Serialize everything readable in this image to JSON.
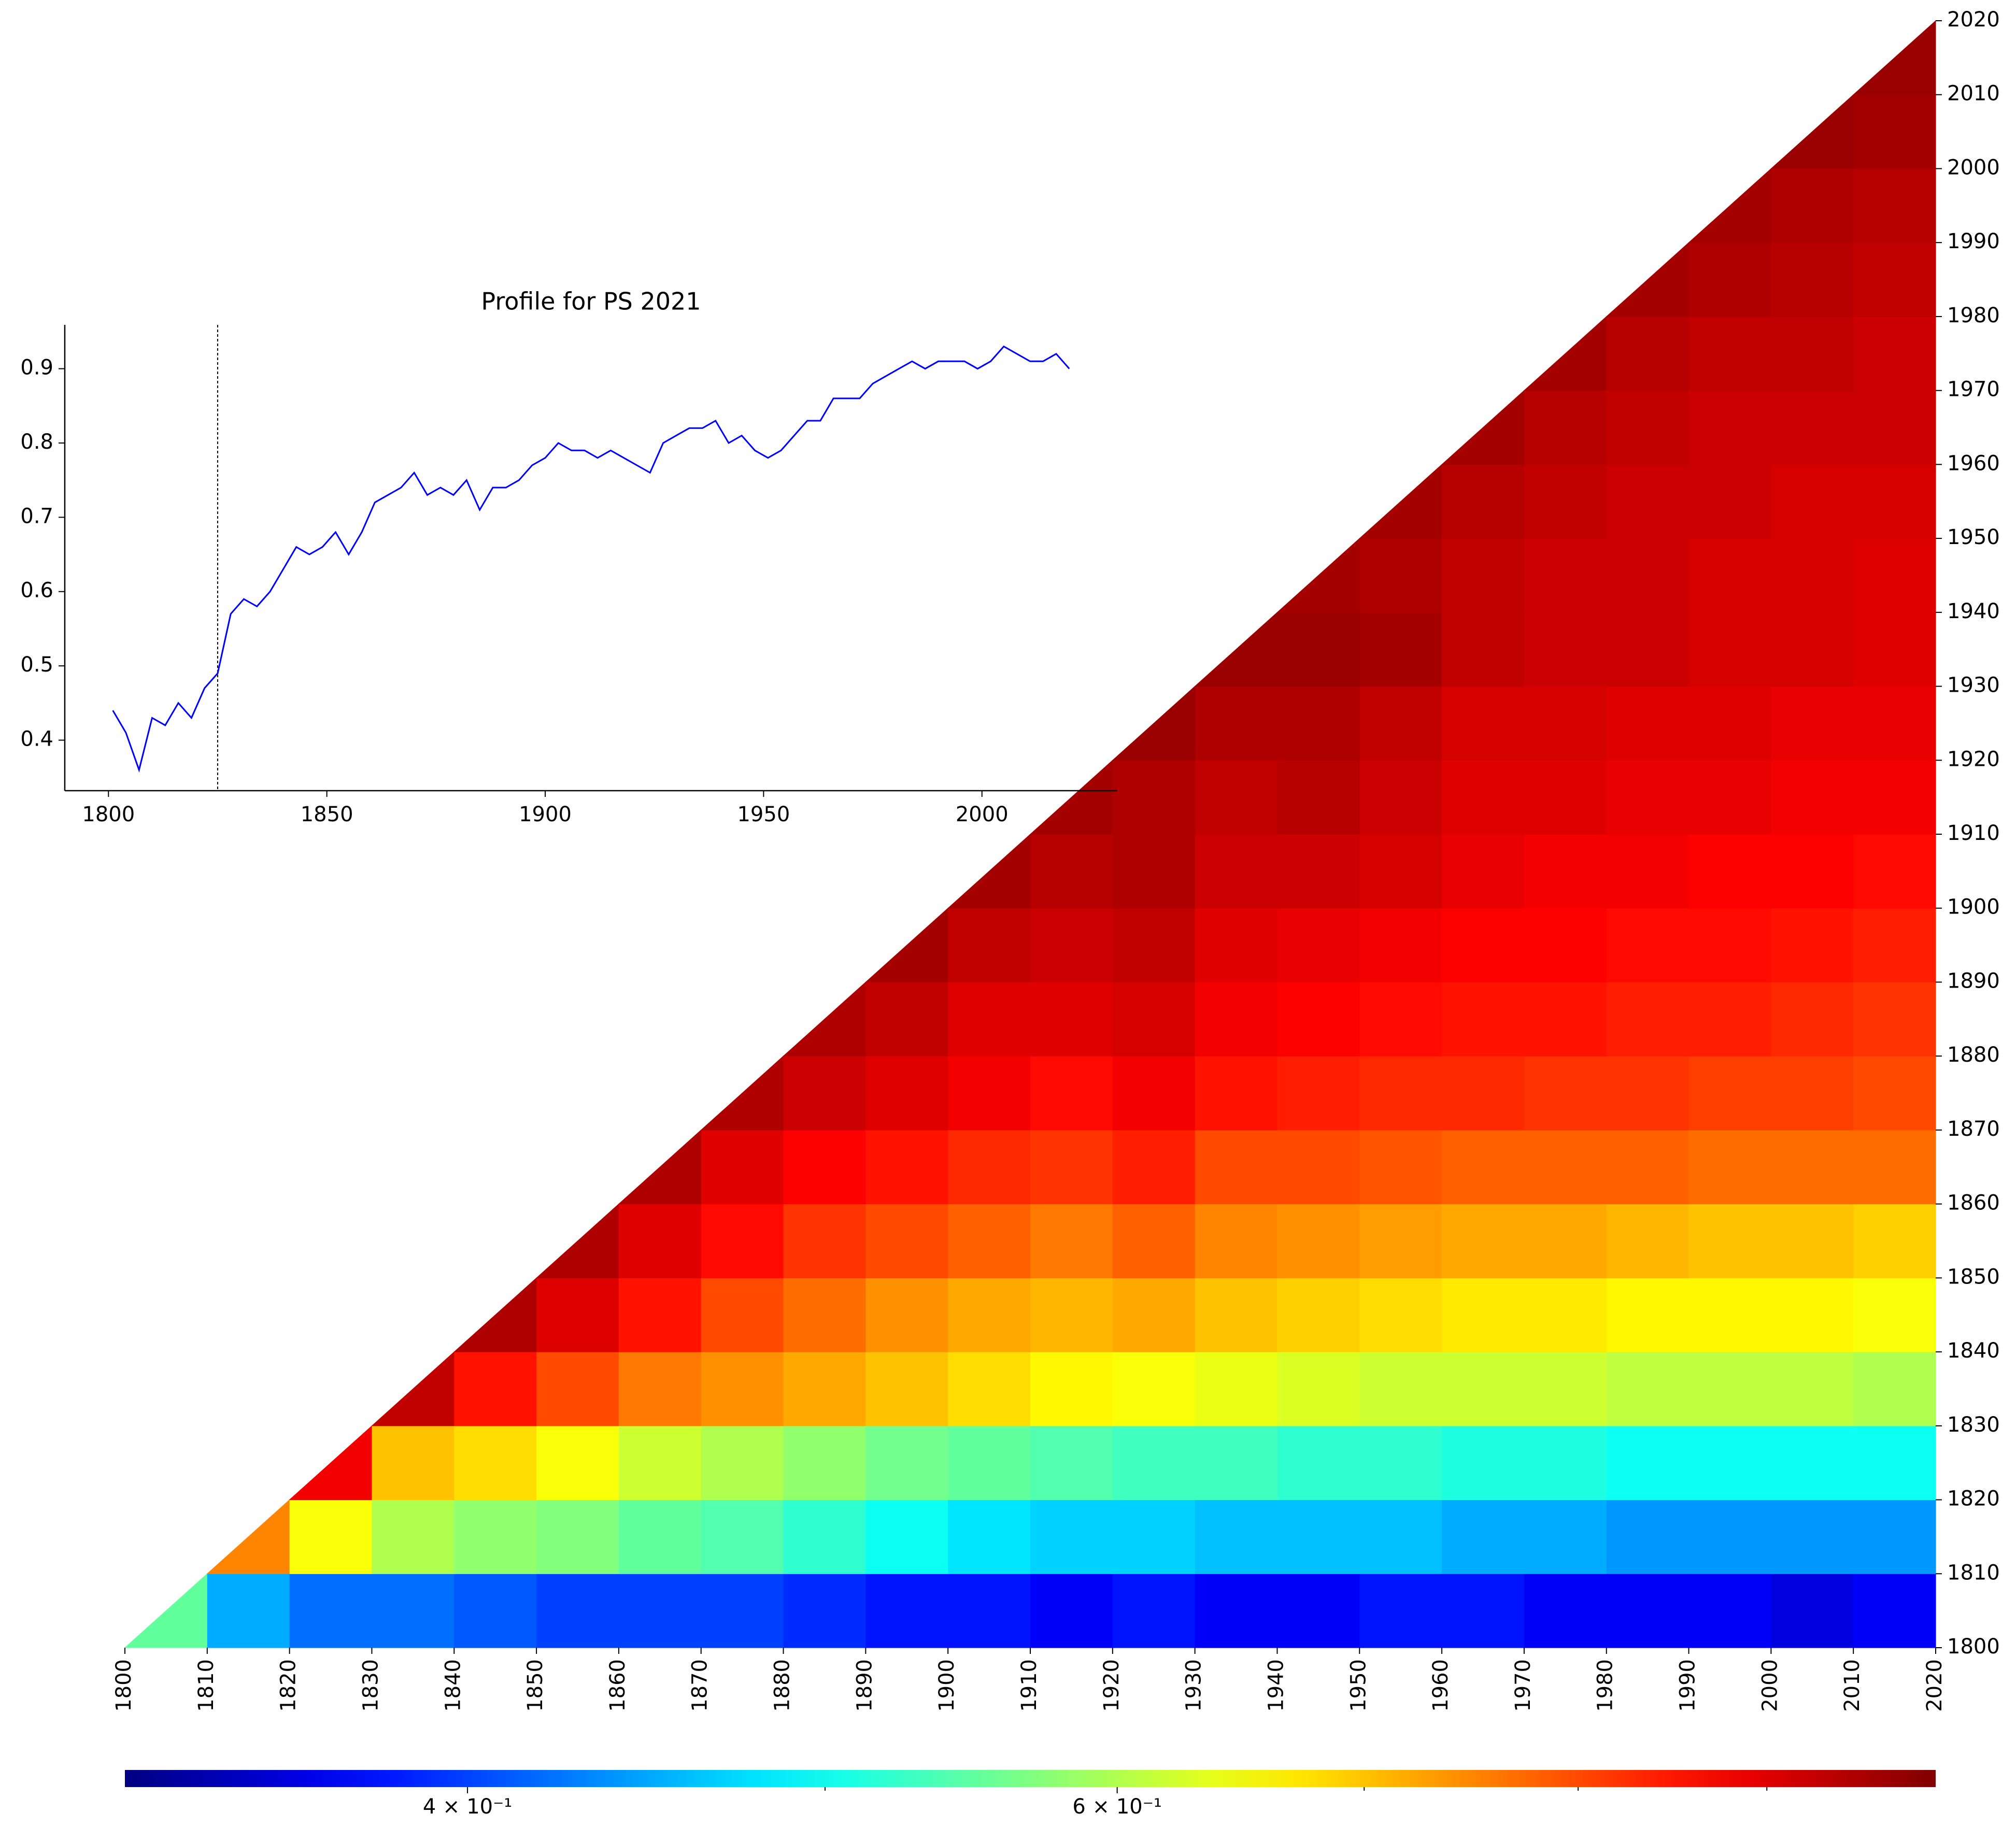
{
  "chart_data": [
    {
      "type": "heatmap",
      "bins": [
        1800,
        1810,
        1820,
        1830,
        1840,
        1850,
        1860,
        1870,
        1880,
        1890,
        1900,
        1910,
        1920,
        1930,
        1940,
        1950,
        1960,
        1970,
        1980,
        1990,
        2000,
        2010,
        2020
      ],
      "matrix": [
        [
          0.55,
          0.45,
          0.42,
          0.42,
          0.41,
          0.4,
          0.4,
          0.4,
          0.39,
          0.38,
          0.38,
          0.37,
          0.38,
          0.37,
          0.37,
          0.38,
          0.38,
          0.37,
          0.37,
          0.37,
          0.36,
          0.37
        ],
        [
          null,
          0.75,
          0.65,
          0.6,
          0.58,
          0.57,
          0.55,
          0.54,
          0.52,
          0.5,
          0.48,
          0.47,
          0.47,
          0.46,
          0.46,
          0.46,
          0.45,
          0.45,
          0.44,
          0.44,
          0.44,
          0.44
        ],
        [
          null,
          null,
          0.88,
          0.7,
          0.68,
          0.65,
          0.62,
          0.6,
          0.58,
          0.56,
          0.55,
          0.54,
          0.53,
          0.53,
          0.52,
          0.52,
          0.51,
          0.51,
          0.5,
          0.5,
          0.5,
          0.5
        ],
        [
          null,
          null,
          null,
          0.93,
          0.85,
          0.8,
          0.76,
          0.74,
          0.72,
          0.7,
          0.68,
          0.66,
          0.65,
          0.64,
          0.63,
          0.62,
          0.62,
          0.62,
          0.61,
          0.61,
          0.61,
          0.6
        ],
        [
          null,
          null,
          null,
          null,
          0.95,
          0.9,
          0.85,
          0.8,
          0.77,
          0.74,
          0.72,
          0.71,
          0.72,
          0.7,
          0.69,
          0.68,
          0.67,
          0.67,
          0.66,
          0.66,
          0.66,
          0.65
        ],
        [
          null,
          null,
          null,
          null,
          null,
          0.95,
          0.9,
          0.86,
          0.82,
          0.8,
          0.78,
          0.76,
          0.78,
          0.75,
          0.74,
          0.73,
          0.72,
          0.72,
          0.71,
          0.7,
          0.7,
          0.69
        ],
        [
          null,
          null,
          null,
          null,
          null,
          null,
          0.95,
          0.9,
          0.87,
          0.85,
          0.83,
          0.82,
          0.84,
          0.8,
          0.8,
          0.79,
          0.78,
          0.78,
          0.78,
          0.77,
          0.77,
          0.77
        ],
        [
          null,
          null,
          null,
          null,
          null,
          null,
          null,
          0.95,
          0.92,
          0.9,
          0.88,
          0.86,
          0.88,
          0.85,
          0.84,
          0.83,
          0.83,
          0.82,
          0.82,
          0.81,
          0.81,
          0.8
        ],
        [
          null,
          null,
          null,
          null,
          null,
          null,
          null,
          null,
          0.95,
          0.93,
          0.9,
          0.9,
          0.91,
          0.88,
          0.87,
          0.86,
          0.85,
          0.85,
          0.84,
          0.84,
          0.83,
          0.82
        ],
        [
          null,
          null,
          null,
          null,
          null,
          null,
          null,
          null,
          null,
          0.96,
          0.93,
          0.92,
          0.93,
          0.9,
          0.89,
          0.88,
          0.87,
          0.87,
          0.86,
          0.86,
          0.85,
          0.84
        ],
        [
          null,
          null,
          null,
          null,
          null,
          null,
          null,
          null,
          null,
          null,
          0.96,
          0.94,
          0.95,
          0.92,
          0.92,
          0.91,
          0.89,
          0.88,
          0.88,
          0.87,
          0.87,
          0.86
        ],
        [
          null,
          null,
          null,
          null,
          null,
          null,
          null,
          null,
          null,
          null,
          null,
          0.96,
          0.95,
          0.93,
          0.94,
          0.92,
          0.9,
          0.9,
          0.89,
          0.89,
          0.88,
          0.88
        ],
        [
          null,
          null,
          null,
          null,
          null,
          null,
          null,
          null,
          null,
          null,
          null,
          null,
          0.97,
          0.95,
          0.95,
          0.93,
          0.91,
          0.91,
          0.9,
          0.9,
          0.89,
          0.89
        ],
        [
          null,
          null,
          null,
          null,
          null,
          null,
          null,
          null,
          null,
          null,
          null,
          null,
          null,
          0.97,
          0.97,
          0.96,
          0.93,
          0.92,
          0.92,
          0.91,
          0.91,
          0.9
        ],
        [
          null,
          null,
          null,
          null,
          null,
          null,
          null,
          null,
          null,
          null,
          null,
          null,
          null,
          null,
          0.96,
          0.95,
          0.93,
          0.92,
          0.92,
          0.91,
          0.91,
          0.9
        ],
        [
          null,
          null,
          null,
          null,
          null,
          null,
          null,
          null,
          null,
          null,
          null,
          null,
          null,
          null,
          null,
          0.96,
          0.94,
          0.93,
          0.92,
          0.92,
          0.91,
          0.91
        ],
        [
          null,
          null,
          null,
          null,
          null,
          null,
          null,
          null,
          null,
          null,
          null,
          null,
          null,
          null,
          null,
          null,
          0.96,
          0.94,
          0.93,
          0.92,
          0.92,
          0.92
        ],
        [
          null,
          null,
          null,
          null,
          null,
          null,
          null,
          null,
          null,
          null,
          null,
          null,
          null,
          null,
          null,
          null,
          null,
          0.96,
          0.94,
          0.93,
          0.93,
          0.92
        ],
        [
          null,
          null,
          null,
          null,
          null,
          null,
          null,
          null,
          null,
          null,
          null,
          null,
          null,
          null,
          null,
          null,
          null,
          null,
          0.96,
          0.95,
          0.94,
          0.93
        ],
        [
          null,
          null,
          null,
          null,
          null,
          null,
          null,
          null,
          null,
          null,
          null,
          null,
          null,
          null,
          null,
          null,
          null,
          null,
          null,
          0.96,
          0.95,
          0.94
        ],
        [
          null,
          null,
          null,
          null,
          null,
          null,
          null,
          null,
          null,
          null,
          null,
          null,
          null,
          null,
          null,
          null,
          null,
          null,
          null,
          null,
          0.97,
          0.96
        ],
        [
          null,
          null,
          null,
          null,
          null,
          null,
          null,
          null,
          null,
          null,
          null,
          null,
          null,
          null,
          null,
          null,
          null,
          null,
          null,
          null,
          null,
          0.97
        ]
      ],
      "xlim": [
        1800,
        2020
      ],
      "ylim": [
        1800,
        2020
      ],
      "xticks": [
        1800,
        1810,
        1820,
        1830,
        1840,
        1850,
        1860,
        1870,
        1880,
        1890,
        1900,
        1910,
        1920,
        1930,
        1940,
        1950,
        1960,
        1970,
        1980,
        1990,
        2000,
        2010,
        2020
      ],
      "yticks": [
        1800,
        1810,
        1820,
        1830,
        1840,
        1850,
        1860,
        1870,
        1880,
        1890,
        1900,
        1910,
        1920,
        1930,
        1940,
        1950,
        1960,
        1970,
        1980,
        1990,
        2000,
        2010,
        2020
      ],
      "colorbar": {
        "colormap": "jet",
        "scale": "log",
        "lim": [
          0.323,
          1.0
        ],
        "ticks": [
          {
            "value": 0.4,
            "label": "4 × 10⁻¹"
          },
          {
            "value": 0.6,
            "label": "6 × 10⁻¹"
          }
        ],
        "minor_ticks": [
          0.5,
          0.7,
          0.8,
          0.9
        ]
      }
    },
    {
      "type": "line",
      "title": "Profile for PS 2021",
      "x": [
        1801,
        1804,
        1807,
        1810,
        1813,
        1816,
        1819,
        1822,
        1825,
        1828,
        1831,
        1834,
        1837,
        1840,
        1843,
        1846,
        1849,
        1852,
        1855,
        1858,
        1861,
        1864,
        1867,
        1870,
        1873,
        1876,
        1879,
        1882,
        1885,
        1888,
        1891,
        1894,
        1897,
        1900,
        1903,
        1906,
        1909,
        1912,
        1915,
        1918,
        1921,
        1924,
        1927,
        1930,
        1933,
        1936,
        1939,
        1942,
        1945,
        1948,
        1951,
        1954,
        1957,
        1960,
        1963,
        1966,
        1969,
        1972,
        1975,
        1978,
        1981,
        1984,
        1987,
        1990,
        1993,
        1996,
        1999,
        2002,
        2005,
        2008,
        2011,
        2014,
        2017,
        2020
      ],
      "series": [
        {
          "color": "#0000ff",
          "values": [
            0.44,
            0.41,
            0.36,
            0.43,
            0.42,
            0.45,
            0.43,
            0.47,
            0.49,
            0.57,
            0.59,
            0.58,
            0.6,
            0.63,
            0.66,
            0.65,
            0.66,
            0.68,
            0.65,
            0.68,
            0.72,
            0.73,
            0.74,
            0.76,
            0.73,
            0.74,
            0.73,
            0.75,
            0.71,
            0.74,
            0.74,
            0.75,
            0.77,
            0.78,
            0.8,
            0.79,
            0.79,
            0.78,
            0.79,
            0.78,
            0.77,
            0.76,
            0.8,
            0.81,
            0.82,
            0.82,
            0.83,
            0.8,
            0.81,
            0.79,
            0.78,
            0.79,
            0.81,
            0.83,
            0.83,
            0.86,
            0.86,
            0.86,
            0.88,
            0.89,
            0.9,
            0.91,
            0.9,
            0.91,
            0.91,
            0.91,
            0.9,
            0.91,
            0.93,
            0.92,
            0.91,
            0.91,
            0.92,
            0.9
          ]
        }
      ],
      "vline": 1825,
      "xlim": [
        1790,
        2031
      ],
      "ylim": [
        0.332,
        0.959
      ],
      "xticks": [
        1800,
        1850,
        1900,
        1950,
        2000
      ],
      "yticks": [
        0.4,
        0.5,
        0.6,
        0.7,
        0.8,
        0.9
      ]
    }
  ]
}
